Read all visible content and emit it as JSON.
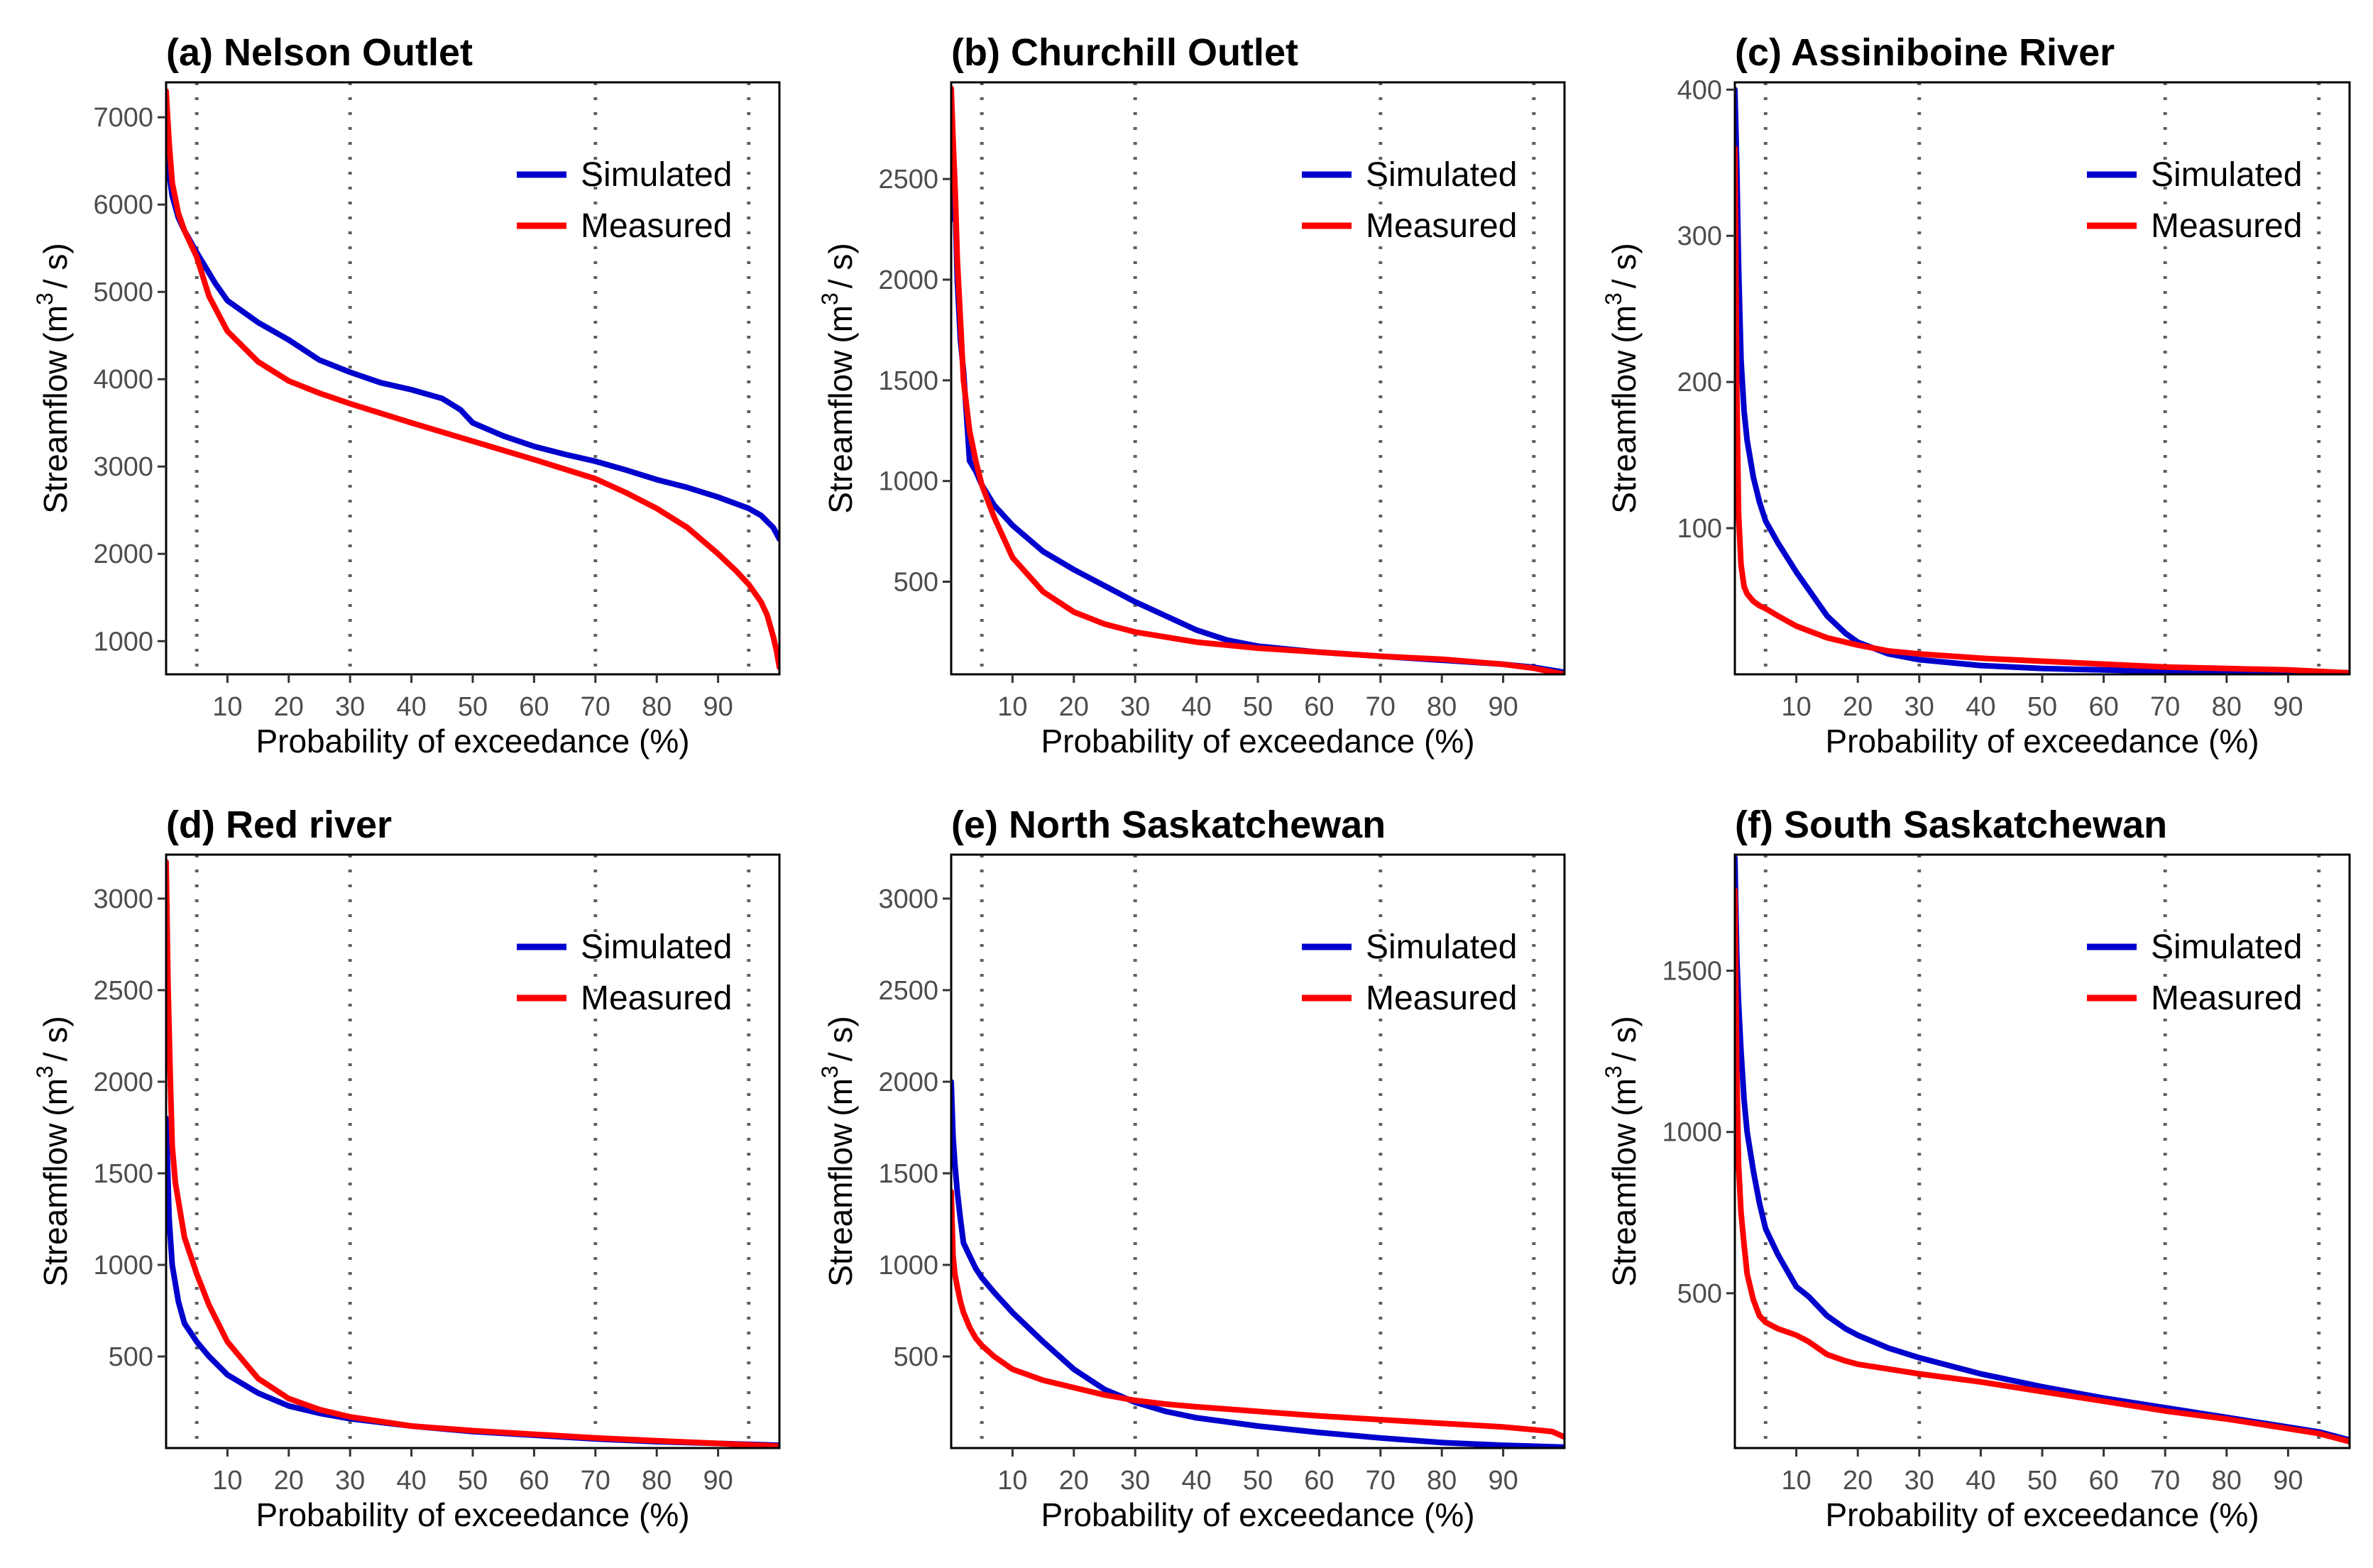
{
  "figure": {
    "ylabel_main": "Streamflow",
    "ylabel_unit_open": "(m",
    "ylabel_unit_exp": "3",
    "ylabel_unit_close": "/ s)",
    "xlabel": "Probability of exceedance (%)",
    "legend": [
      {
        "name": "Simulated",
        "color": "#0000CD"
      },
      {
        "name": "Measured",
        "color": "#FF0000"
      }
    ],
    "reference_lines_x": [
      5,
      30,
      70,
      95
    ]
  },
  "chart_data": [
    {
      "type": "line",
      "title": "(a) Nelson Outlet",
      "xlabel": "Probability of exceedance (%)",
      "ylabel": "Streamflow (m3/s)",
      "xlim": [
        0,
        100
      ],
      "ylim": [
        620,
        7400
      ],
      "xticks": [
        10,
        20,
        30,
        40,
        50,
        60,
        70,
        80,
        90
      ],
      "yticks": [
        1000,
        2000,
        3000,
        4000,
        5000,
        6000,
        7000
      ],
      "legend_position": "top-right",
      "series": [
        {
          "name": "Simulated",
          "x": [
            0,
            1,
            2,
            3,
            5,
            8,
            10,
            15,
            20,
            25,
            30,
            35,
            40,
            45,
            48,
            50,
            55,
            60,
            65,
            70,
            75,
            80,
            85,
            90,
            95,
            97,
            99,
            100
          ],
          "y": [
            6600,
            6100,
            5850,
            5700,
            5450,
            5100,
            4900,
            4650,
            4450,
            4220,
            4080,
            3960,
            3880,
            3780,
            3650,
            3500,
            3350,
            3230,
            3140,
            3060,
            2960,
            2850,
            2760,
            2650,
            2520,
            2440,
            2300,
            2170
          ]
        },
        {
          "name": "Measured",
          "x": [
            0,
            0.5,
            1,
            2,
            3,
            5,
            7,
            10,
            15,
            20,
            25,
            30,
            40,
            50,
            60,
            70,
            75,
            80,
            85,
            90,
            93,
            95,
            97,
            98,
            99,
            99.5,
            100
          ],
          "y": [
            7300,
            6700,
            6250,
            5900,
            5700,
            5400,
            4950,
            4550,
            4200,
            3980,
            3840,
            3720,
            3500,
            3290,
            3080,
            2860,
            2700,
            2520,
            2300,
            2000,
            1800,
            1650,
            1450,
            1300,
            1050,
            900,
            700
          ]
        }
      ]
    },
    {
      "type": "line",
      "title": "(b) Churchill Outlet",
      "xlabel": "Probability of exceedance (%)",
      "ylabel": "Streamflow (m3/s)",
      "xlim": [
        0,
        100
      ],
      "ylim": [
        40,
        2980
      ],
      "xticks": [
        10,
        20,
        30,
        40,
        50,
        60,
        70,
        80,
        90
      ],
      "yticks": [
        500,
        1000,
        1500,
        2000,
        2500
      ],
      "legend_position": "top-right",
      "series": [
        {
          "name": "Simulated",
          "x": [
            0,
            0.5,
            1,
            1.5,
            2,
            3,
            4,
            5,
            7,
            10,
            15,
            20,
            25,
            30,
            35,
            40,
            45,
            50,
            60,
            70,
            80,
            90,
            95,
            100
          ],
          "y": [
            2300,
            2550,
            2000,
            1700,
            1550,
            1100,
            1050,
            980,
            880,
            780,
            650,
            560,
            480,
            400,
            330,
            260,
            210,
            180,
            150,
            130,
            110,
            90,
            75,
            50
          ]
        },
        {
          "name": "Measured",
          "x": [
            0,
            0.3,
            0.7,
            1,
            1.5,
            2,
            3,
            4,
            5,
            7,
            10,
            15,
            20,
            25,
            30,
            40,
            50,
            60,
            70,
            80,
            90,
            95,
            100
          ],
          "y": [
            2950,
            2700,
            2400,
            2100,
            1800,
            1500,
            1250,
            1100,
            980,
            820,
            620,
            450,
            350,
            290,
            250,
            200,
            170,
            150,
            130,
            115,
            90,
            70,
            40
          ]
        }
      ]
    },
    {
      "type": "line",
      "title": "(c) Assiniboine River",
      "xlabel": "Probability of exceedance (%)",
      "ylabel": "Streamflow (m3/s)",
      "xlim": [
        0,
        100
      ],
      "ylim": [
        0,
        405
      ],
      "xticks": [
        10,
        20,
        30,
        40,
        50,
        60,
        70,
        80,
        90
      ],
      "yticks": [
        100,
        200,
        300,
        400
      ],
      "legend_position": "top-right",
      "series": [
        {
          "name": "Simulated",
          "x": [
            0,
            0.3,
            0.6,
            1,
            1.5,
            2,
            3,
            4,
            5,
            7,
            10,
            12,
            15,
            18,
            20,
            25,
            30,
            40,
            50,
            60,
            70,
            80,
            90,
            100
          ],
          "y": [
            400,
            350,
            280,
            215,
            180,
            160,
            135,
            118,
            105,
            90,
            70,
            58,
            40,
            28,
            22,
            14,
            10,
            6,
            4,
            3,
            2,
            1.5,
            1,
            0.5
          ]
        },
        {
          "name": "Measured",
          "x": [
            0,
            0.3,
            0.6,
            1,
            1.5,
            2,
            3,
            4,
            5,
            7,
            10,
            15,
            20,
            25,
            30,
            40,
            50,
            60,
            70,
            80,
            90,
            100
          ],
          "y": [
            360,
            200,
            110,
            75,
            60,
            55,
            50,
            47,
            45,
            40,
            33,
            25,
            20,
            16,
            14,
            11,
            9,
            7,
            5,
            4,
            3,
            1
          ]
        }
      ]
    },
    {
      "type": "line",
      "title": "(d) Red river",
      "xlabel": "Probability of exceedance (%)",
      "ylabel": "Streamflow (m3/s)",
      "xlim": [
        0,
        100
      ],
      "ylim": [
        0,
        3240
      ],
      "xticks": [
        10,
        20,
        30,
        40,
        50,
        60,
        70,
        80,
        90
      ],
      "yticks": [
        500,
        1000,
        1500,
        2000,
        2500,
        3000
      ],
      "legend_position": "top-right",
      "series": [
        {
          "name": "Simulated",
          "x": [
            0,
            0.5,
            1,
            2,
            3,
            4,
            5,
            7,
            10,
            15,
            20,
            25,
            30,
            40,
            50,
            60,
            70,
            80,
            90,
            100
          ],
          "y": [
            1800,
            1250,
            1000,
            800,
            680,
            630,
            580,
            500,
            400,
            300,
            230,
            190,
            160,
            120,
            90,
            70,
            50,
            35,
            25,
            15
          ]
        },
        {
          "name": "Measured",
          "x": [
            0,
            0.3,
            0.7,
            1,
            1.5,
            2,
            3,
            4,
            5,
            7,
            10,
            15,
            20,
            25,
            30,
            40,
            50,
            60,
            70,
            80,
            90,
            100
          ],
          "y": [
            3200,
            2550,
            2000,
            1650,
            1450,
            1350,
            1150,
            1050,
            950,
            780,
            580,
            380,
            270,
            210,
            170,
            120,
            95,
            75,
            55,
            40,
            25,
            10
          ]
        }
      ]
    },
    {
      "type": "line",
      "title": "(e) North Saskatchewan",
      "xlabel": "Probability of exceedance (%)",
      "ylabel": "Streamflow (m3/s)",
      "xlim": [
        0,
        100
      ],
      "ylim": [
        0,
        3240
      ],
      "xticks": [
        10,
        20,
        30,
        40,
        50,
        60,
        70,
        80,
        90
      ],
      "yticks": [
        500,
        1000,
        1500,
        2000,
        2500,
        3000
      ],
      "legend_position": "top-right",
      "series": [
        {
          "name": "Simulated",
          "x": [
            0,
            0.3,
            0.6,
            1,
            1.5,
            2,
            3,
            4,
            5,
            7,
            10,
            15,
            20,
            25,
            30,
            35,
            40,
            50,
            60,
            70,
            80,
            90,
            100
          ],
          "y": [
            2000,
            1700,
            1550,
            1400,
            1250,
            1120,
            1050,
            980,
            930,
            850,
            740,
            580,
            430,
            320,
            250,
            200,
            165,
            120,
            85,
            55,
            30,
            15,
            5
          ]
        },
        {
          "name": "Measured",
          "x": [
            0,
            0.3,
            0.6,
            1,
            1.5,
            2,
            3,
            4,
            5,
            7,
            10,
            15,
            20,
            25,
            30,
            35,
            40,
            50,
            60,
            70,
            80,
            90,
            95,
            98,
            100
          ],
          "y": [
            1400,
            1050,
            950,
            880,
            800,
            740,
            660,
            600,
            560,
            500,
            430,
            370,
            330,
            290,
            260,
            240,
            225,
            200,
            175,
            155,
            135,
            115,
            100,
            90,
            60
          ]
        }
      ]
    },
    {
      "type": "line",
      "title": "(f) South Saskatchewan",
      "xlabel": "Probability of exceedance (%)",
      "ylabel": "Streamflow (m3/s)",
      "xlim": [
        0,
        100
      ],
      "ylim": [
        20,
        1860
      ],
      "xticks": [
        10,
        20,
        30,
        40,
        50,
        60,
        70,
        80,
        90
      ],
      "yticks": [
        500,
        1000,
        1500
      ],
      "legend_position": "top-right",
      "series": [
        {
          "name": "Simulated",
          "x": [
            0,
            0.3,
            0.6,
            1,
            1.5,
            2,
            3,
            4,
            5,
            7,
            10,
            12,
            15,
            18,
            20,
            25,
            30,
            40,
            50,
            60,
            70,
            80,
            90,
            95,
            100
          ],
          "y": [
            1850,
            1550,
            1400,
            1250,
            1100,
            1000,
            880,
            780,
            700,
            620,
            520,
            490,
            430,
            390,
            370,
            330,
            300,
            250,
            210,
            175,
            145,
            115,
            85,
            70,
            45
          ]
        },
        {
          "name": "Measured",
          "x": [
            0,
            0.3,
            0.6,
            1,
            1.5,
            2,
            3,
            4,
            5,
            7,
            10,
            12,
            15,
            18,
            20,
            25,
            30,
            40,
            50,
            60,
            70,
            80,
            90,
            95,
            100
          ],
          "y": [
            1750,
            1200,
            900,
            750,
            650,
            560,
            480,
            430,
            410,
            390,
            370,
            350,
            310,
            290,
            280,
            265,
            250,
            225,
            195,
            165,
            135,
            110,
            80,
            65,
            40
          ]
        }
      ]
    }
  ]
}
